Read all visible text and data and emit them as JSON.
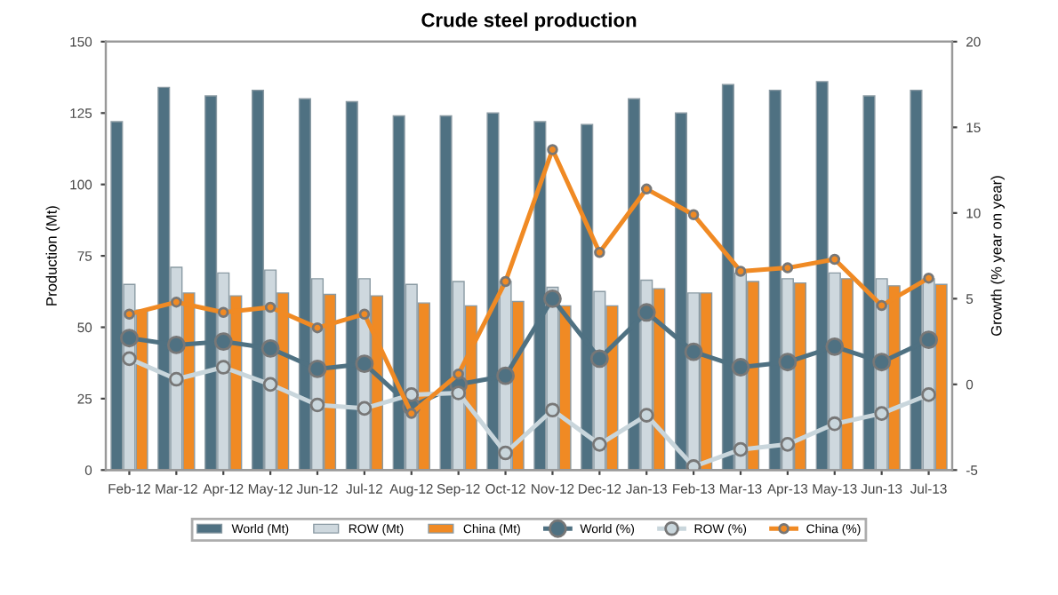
{
  "chart_data": {
    "type": "bar",
    "title": "Crude steel production",
    "ylabel": "Production (Mt)",
    "y2label": "Growth (% year on year)",
    "categories": [
      "Feb-12",
      "Mar-12",
      "Apr-12",
      "May-12",
      "Jun-12",
      "Jul-12",
      "Aug-12",
      "Sep-12",
      "Oct-12",
      "Nov-12",
      "Dec-12",
      "Jan-13",
      "Feb-13",
      "Mar-13",
      "Apr-13",
      "May-13",
      "Jun-13",
      "Jul-13"
    ],
    "series": [
      {
        "name": "World (Mt)",
        "color": "#4f7182",
        "values": [
          122,
          134,
          131,
          133,
          130,
          129,
          124,
          124,
          125,
          122,
          121,
          130,
          125,
          135,
          133,
          136,
          131,
          133
        ]
      },
      {
        "name": "ROW (Mt)",
        "color": "#ced8de",
        "values": [
          65,
          71,
          69,
          70,
          67,
          67,
          65,
          66,
          66,
          64,
          62.5,
          66.5,
          62,
          69,
          67,
          69,
          67,
          67
        ]
      },
      {
        "name": "China (Mt)",
        "color": "#f08a24",
        "values": [
          56,
          62,
          61,
          62,
          61.5,
          61,
          58.5,
          57.5,
          59,
          57.5,
          57.5,
          63.5,
          62,
          66,
          65.5,
          67,
          64.5,
          65
        ]
      },
      {
        "name": "World (%)",
        "type": "line",
        "axis": "y2",
        "color": "#4f7182",
        "values": [
          2.7,
          2.3,
          2.5,
          2.1,
          0.9,
          1.2,
          -1.3,
          0,
          0.5,
          5.0,
          1.5,
          4.2,
          1.9,
          1.0,
          1.3,
          2.2,
          1.3,
          2.6
        ]
      },
      {
        "name": "ROW (%)",
        "type": "line",
        "axis": "y2",
        "color": "#c9d6dc",
        "values": [
          1.5,
          0.3,
          1.0,
          0,
          -1.2,
          -1.4,
          -0.6,
          -0.5,
          -4.0,
          -1.5,
          -3.5,
          -1.8,
          -4.8,
          -3.8,
          -3.5,
          -2.3,
          -1.7,
          -0.6
        ]
      },
      {
        "name": "China (%)",
        "type": "line",
        "axis": "y2",
        "color": "#f08a24",
        "values": [
          4.1,
          4.8,
          4.2,
          4.5,
          3.3,
          4.1,
          -1.7,
          0.6,
          6.0,
          13.7,
          7.7,
          11.4,
          9.9,
          6.6,
          6.8,
          7.3,
          4.6,
          6.2
        ]
      }
    ],
    "ylim": [
      0,
      150
    ],
    "yticks": [
      0,
      25,
      50,
      75,
      100,
      125,
      150
    ],
    "y2lim": [
      -5,
      20
    ],
    "y2ticks": [
      -5,
      0,
      5,
      10,
      15,
      20
    ],
    "grid": false,
    "legend": "bottom",
    "marker": "circle",
    "line_style": "solid"
  }
}
